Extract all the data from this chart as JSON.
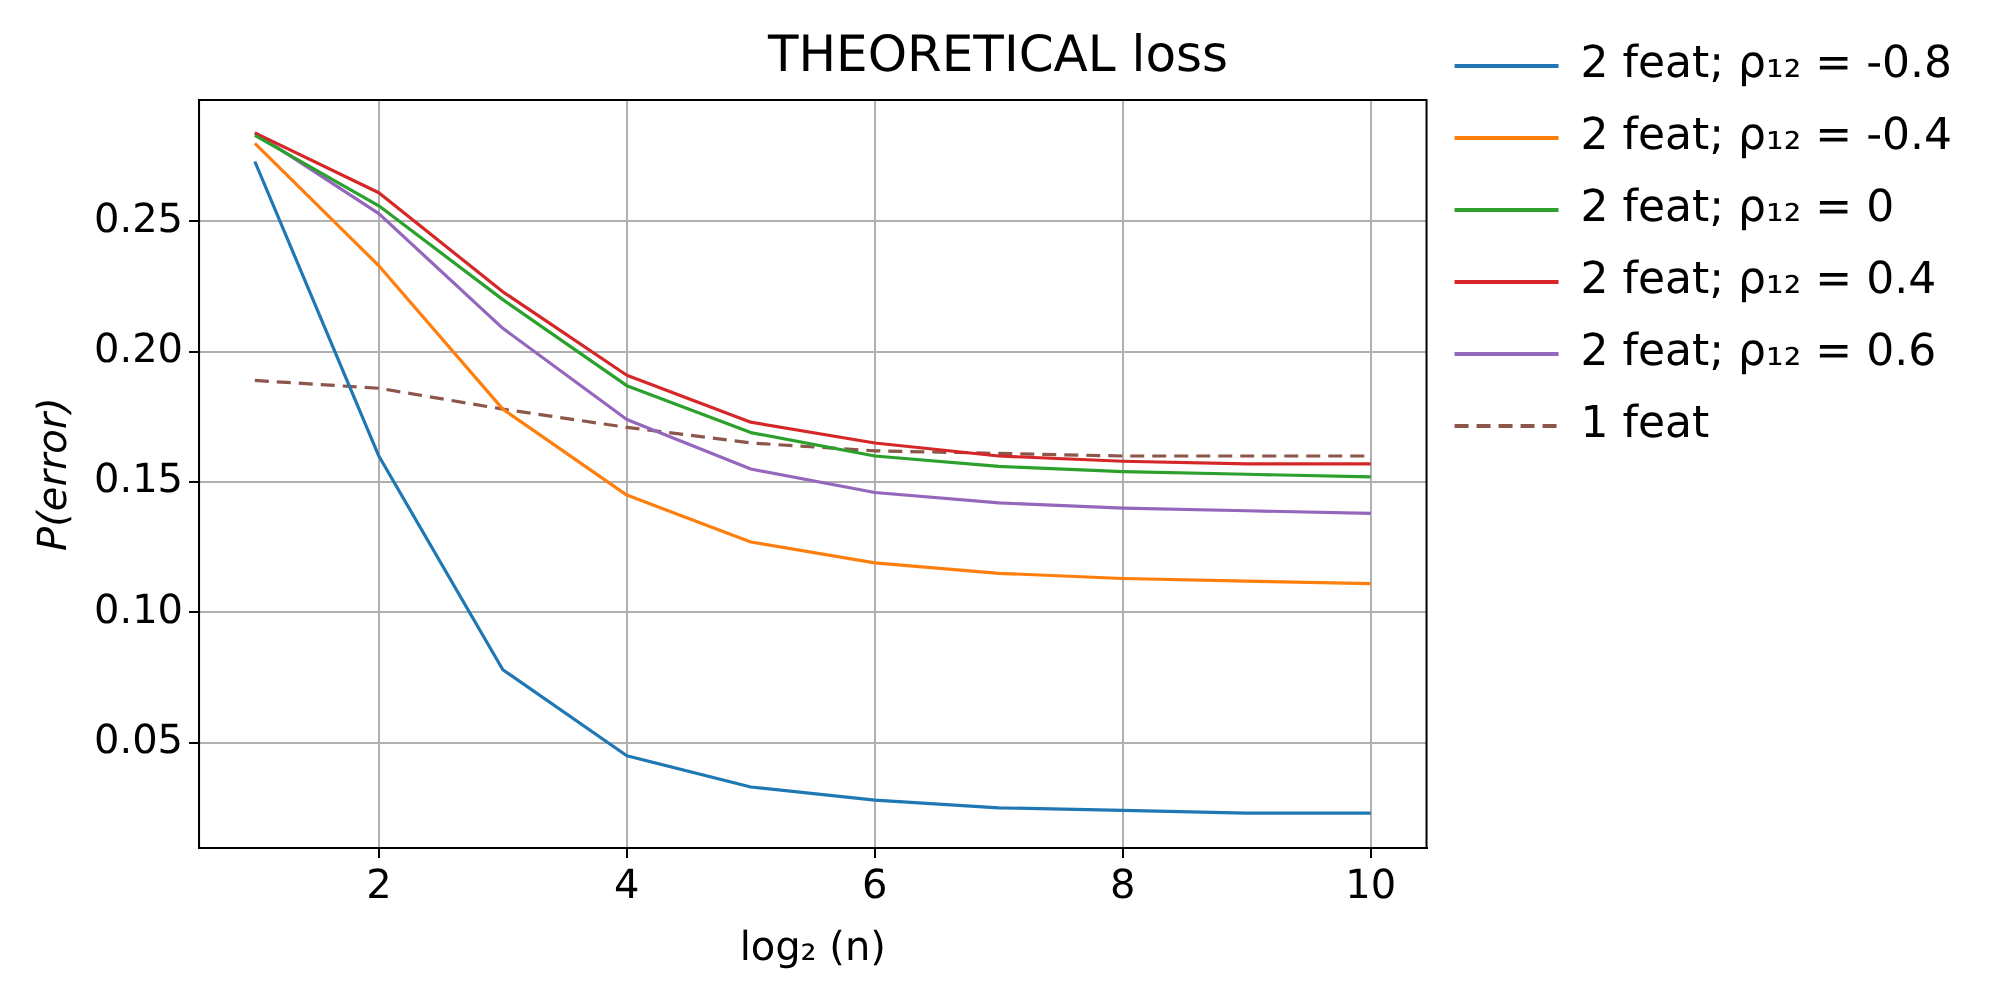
{
  "chart_data": {
    "type": "line",
    "title": "THEORETICAL loss",
    "xlabel": "log₂ (n)",
    "ylabel": "P(error)",
    "x": [
      1,
      2,
      3,
      4,
      5,
      6,
      7,
      8,
      9,
      10
    ],
    "series": [
      {
        "name": "2 feat; ρ₁₂ = -0.8",
        "color": "#1f77b4",
        "values": [
          0.273,
          0.16,
          0.078,
          0.045,
          0.033,
          0.028,
          0.025,
          0.024,
          0.023,
          0.023
        ]
      },
      {
        "name": "2 feat; ρ₁₂ = -0.4",
        "color": "#ff7f0e",
        "values": [
          0.28,
          0.233,
          0.178,
          0.145,
          0.127,
          0.119,
          0.115,
          0.113,
          0.112,
          0.111
        ]
      },
      {
        "name": "2 feat; ρ₁₂ = 0",
        "color": "#2ca02c",
        "values": [
          0.283,
          0.256,
          0.22,
          0.187,
          0.169,
          0.16,
          0.156,
          0.154,
          0.153,
          0.152
        ]
      },
      {
        "name": "2 feat; ρ₁₂ = 0.4",
        "color": "#d62728",
        "values": [
          0.284,
          0.261,
          0.223,
          0.191,
          0.173,
          0.165,
          0.16,
          0.158,
          0.157,
          0.157
        ]
      },
      {
        "name": "2 feat; ρ₁₂ = 0.6",
        "color": "#9467bd",
        "values": [
          0.284,
          0.253,
          0.209,
          0.174,
          0.155,
          0.146,
          0.142,
          0.14,
          0.139,
          0.138
        ]
      },
      {
        "name": "1 feat",
        "color": "#8c564b",
        "line_style": "dashed",
        "values": [
          0.189,
          0.186,
          0.178,
          0.171,
          0.165,
          0.162,
          0.161,
          0.16,
          0.16,
          0.16
        ]
      }
    ],
    "xlim": [
      0.55,
      10.45
    ],
    "xticks": [
      2,
      4,
      6,
      8,
      10
    ],
    "ylim": [
      0.0096,
      0.2966
    ],
    "yticks": [
      0.05,
      {
        "value": 0.1,
        "label": "0.10"
      },
      0.15,
      {
        "value": 0.2,
        "label": "0.20"
      },
      0.25
    ],
    "grid": true,
    "legend": "right",
    "marker": "none",
    "line_style": "solid"
  }
}
